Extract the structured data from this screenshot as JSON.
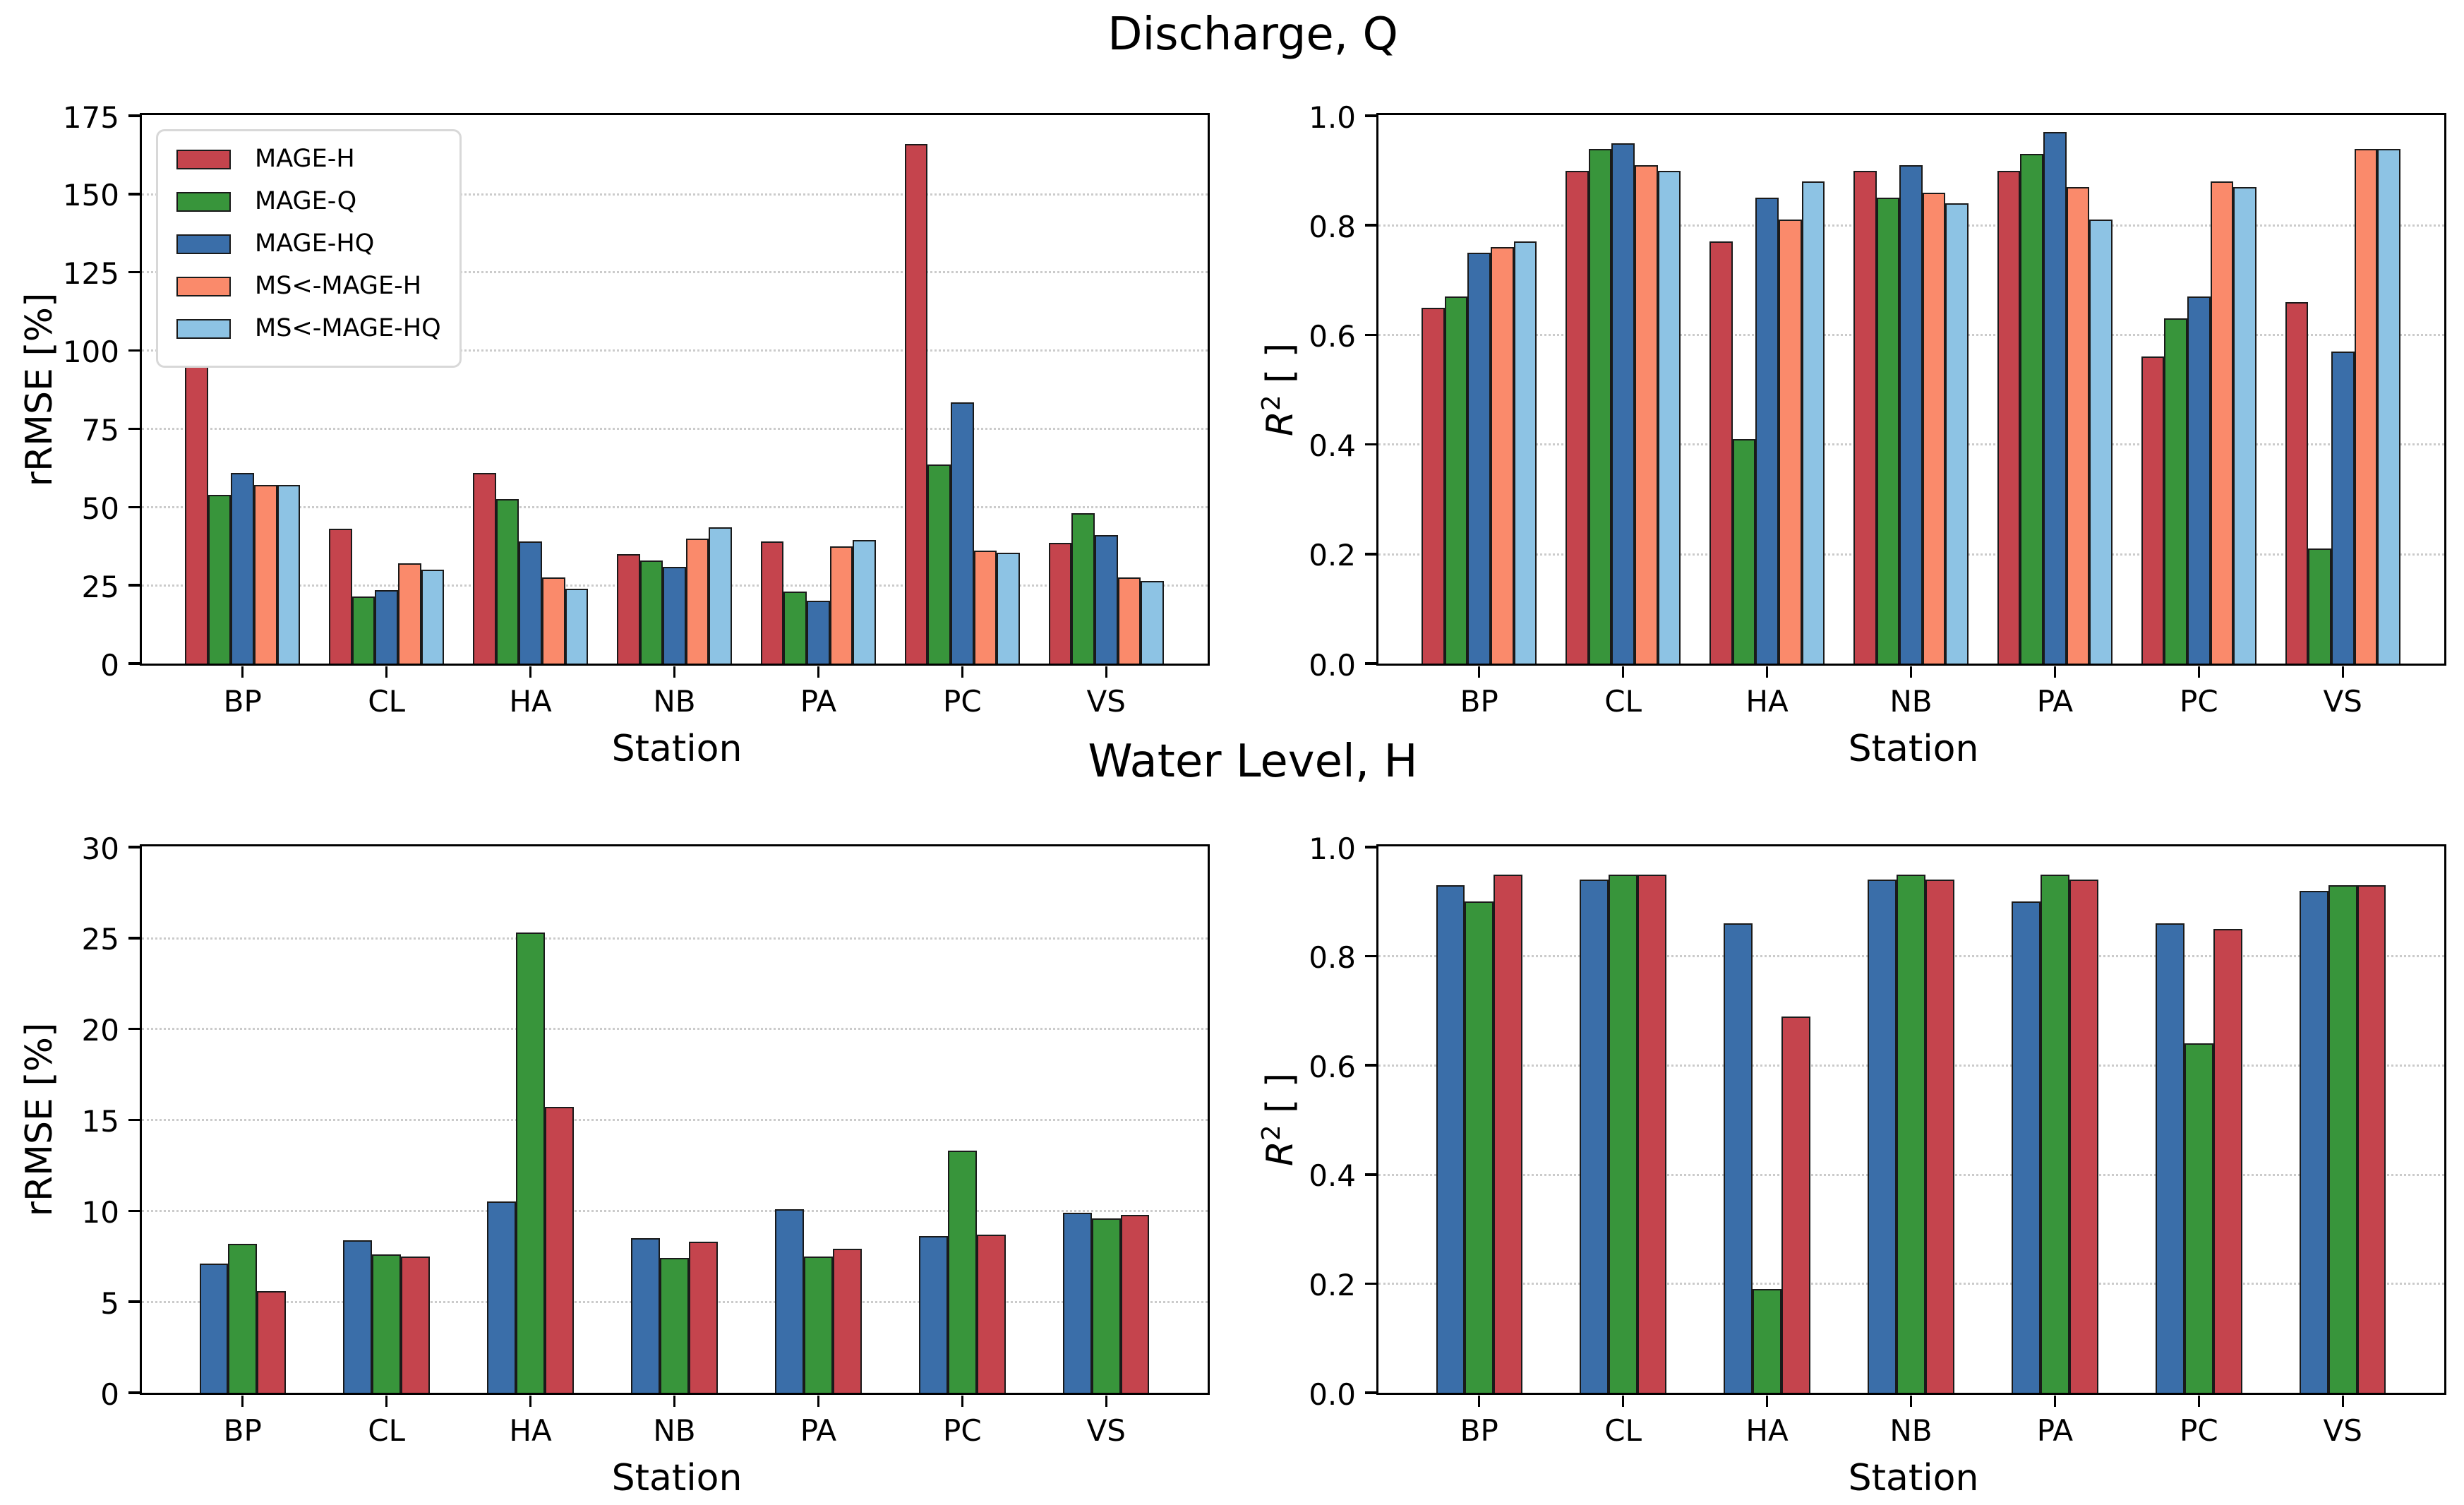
{
  "figure": {
    "row_titles": [
      "Discharge, Q",
      "Water Level, H"
    ],
    "background": "#ffffff"
  },
  "colors": {
    "spine": "#000000",
    "bar_edge": "#1a1a1a",
    "grid": "#cbcbcb",
    "legend_border": "#d8d8d8",
    "red": "#c5444d",
    "green": "#38953b",
    "blue": "#3a6ea9",
    "salmon": "#fa8a6b",
    "light_blue": "#8dc3e4"
  },
  "chart_data": [
    {
      "id": "discharge-rrmse",
      "type": "bar",
      "group_title": "Discharge, Q",
      "xlabel": "Station",
      "ylabel": "rRMSE [%]",
      "ylim": [
        0,
        175
      ],
      "yticks": [
        0,
        25,
        50,
        75,
        100,
        125,
        150,
        175
      ],
      "ytick_labels": [
        "0",
        "25",
        "50",
        "75",
        "100",
        "125",
        "150",
        "175"
      ],
      "grid": "horizontal-dotted",
      "legend": true,
      "legend_location": "upper left",
      "categories": [
        "BP",
        "CL",
        "HA",
        "NB",
        "PA",
        "PC",
        "VS"
      ],
      "series": [
        {
          "name": "MAGE-H",
          "color": "#c5444d",
          "values": [
            97,
            43,
            61,
            35,
            39,
            166,
            38.5
          ]
        },
        {
          "name": "MAGE-Q",
          "color": "#38953b",
          "values": [
            54,
            21.5,
            52.5,
            33,
            23,
            63.5,
            48
          ]
        },
        {
          "name": "MAGE-HQ",
          "color": "#3a6ea9",
          "values": [
            61,
            23.5,
            39,
            31,
            20,
            83.5,
            41
          ]
        },
        {
          "name": "MS<-MAGE-H",
          "color": "#fa8a6b",
          "values": [
            57,
            32,
            27.5,
            40,
            37.5,
            36,
            27.5
          ]
        },
        {
          "name": "MS<-MAGE-HQ",
          "color": "#8dc3e4",
          "values": [
            57,
            30,
            24,
            43.5,
            39.5,
            35.5,
            26.5
          ]
        }
      ]
    },
    {
      "id": "discharge-r2",
      "type": "bar",
      "group_title": "Discharge, Q",
      "xlabel": "Station",
      "ylabel": "R² [ ]",
      "ylim": [
        0,
        1.0
      ],
      "yticks": [
        0,
        0.2,
        0.4,
        0.6,
        0.8,
        1.0
      ],
      "ytick_labels": [
        "0.0",
        "0.2",
        "0.4",
        "0.6",
        "0.8",
        "1.0"
      ],
      "grid": "horizontal-dotted",
      "legend": false,
      "categories": [
        "BP",
        "CL",
        "HA",
        "NB",
        "PA",
        "PC",
        "VS"
      ],
      "series": [
        {
          "name": "MAGE-H",
          "color": "#c5444d",
          "values": [
            0.65,
            0.9,
            0.77,
            0.9,
            0.9,
            0.56,
            0.66
          ]
        },
        {
          "name": "MAGE-Q",
          "color": "#38953b",
          "values": [
            0.67,
            0.94,
            0.41,
            0.85,
            0.93,
            0.63,
            0.21
          ]
        },
        {
          "name": "MAGE-HQ",
          "color": "#3a6ea9",
          "values": [
            0.75,
            0.95,
            0.85,
            0.91,
            0.97,
            0.67,
            0.57
          ]
        },
        {
          "name": "MS<-MAGE-H",
          "color": "#fa8a6b",
          "values": [
            0.76,
            0.91,
            0.81,
            0.86,
            0.87,
            0.88,
            0.94
          ]
        },
        {
          "name": "MS<-MAGE-HQ",
          "color": "#8dc3e4",
          "values": [
            0.77,
            0.9,
            0.88,
            0.84,
            0.81,
            0.87,
            0.94
          ]
        }
      ]
    },
    {
      "id": "waterlevel-rrmse",
      "type": "bar",
      "group_title": "Water Level, H",
      "xlabel": "Station",
      "ylabel": "rRMSE [%]",
      "ylim": [
        0,
        30
      ],
      "yticks": [
        0,
        5,
        10,
        15,
        20,
        25,
        30
      ],
      "ytick_labels": [
        "0",
        "5",
        "10",
        "15",
        "20",
        "25",
        "30"
      ],
      "grid": "horizontal-dotted",
      "legend": false,
      "categories": [
        "BP",
        "CL",
        "HA",
        "NB",
        "PA",
        "PC",
        "VS"
      ],
      "series": [
        {
          "name": "MAGE-HQ",
          "color": "#3a6ea9",
          "values": [
            7.1,
            8.4,
            10.5,
            8.5,
            10.1,
            8.6,
            9.9
          ]
        },
        {
          "name": "MAGE-Q",
          "color": "#38953b",
          "values": [
            8.2,
            7.6,
            25.3,
            7.4,
            7.5,
            13.3,
            9.6
          ]
        },
        {
          "name": "MAGE-H",
          "color": "#c5444d",
          "values": [
            5.6,
            7.5,
            15.7,
            8.3,
            7.9,
            8.7,
            9.8
          ]
        }
      ]
    },
    {
      "id": "waterlevel-r2",
      "type": "bar",
      "group_title": "Water Level, H",
      "xlabel": "Station",
      "ylabel": "R² [ ]",
      "ylim": [
        0,
        1.0
      ],
      "yticks": [
        0,
        0.2,
        0.4,
        0.6,
        0.8,
        1.0
      ],
      "ytick_labels": [
        "0.0",
        "0.2",
        "0.4",
        "0.6",
        "0.8",
        "1.0"
      ],
      "grid": "horizontal-dotted",
      "legend": false,
      "categories": [
        "BP",
        "CL",
        "HA",
        "NB",
        "PA",
        "PC",
        "VS"
      ],
      "series": [
        {
          "name": "MAGE-HQ",
          "color": "#3a6ea9",
          "values": [
            0.93,
            0.94,
            0.86,
            0.94,
            0.9,
            0.86,
            0.92
          ]
        },
        {
          "name": "MAGE-Q",
          "color": "#38953b",
          "values": [
            0.9,
            0.95,
            0.19,
            0.95,
            0.95,
            0.64,
            0.93
          ]
        },
        {
          "name": "MAGE-H",
          "color": "#c5444d",
          "values": [
            0.95,
            0.95,
            0.69,
            0.94,
            0.94,
            0.85,
            0.93
          ]
        }
      ]
    }
  ]
}
